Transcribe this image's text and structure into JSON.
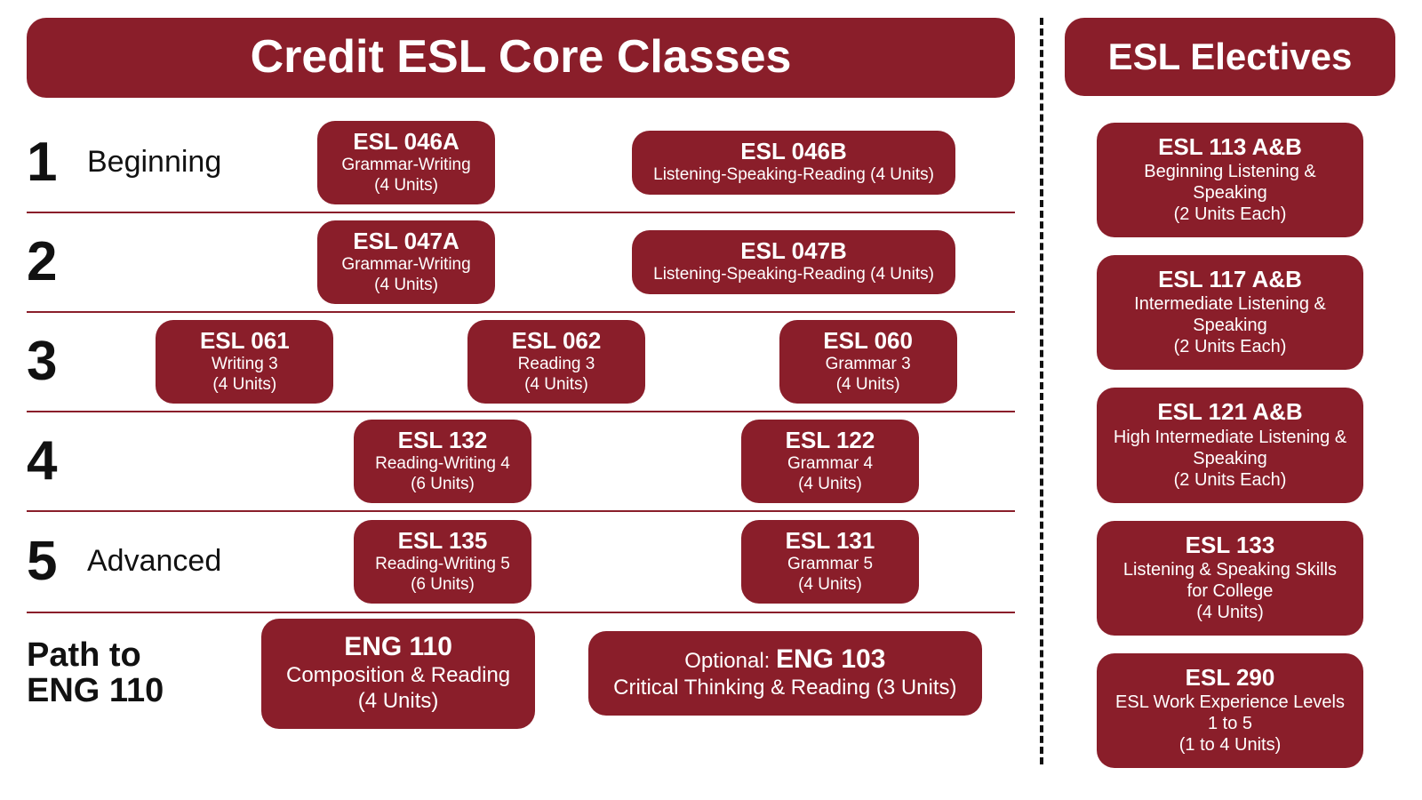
{
  "colors": {
    "maroon": "#8a1e2a",
    "divider": "#8a1e2a",
    "black": "#111111",
    "white": "#ffffff"
  },
  "core": {
    "header": "Credit ESL Core Classes",
    "rows": [
      {
        "num": "1",
        "label": "Beginning",
        "layout": "two",
        "courses": [
          {
            "code": "ESL 046A",
            "desc": "Grammar-Writing",
            "units": "(4 Units)"
          },
          {
            "code": "ESL 046B",
            "desc": "Listening-Speaking-Reading (4 Units)",
            "units": ""
          }
        ]
      },
      {
        "num": "2",
        "label": "",
        "layout": "two",
        "courses": [
          {
            "code": "ESL 047A",
            "desc": "Grammar-Writing",
            "units": "(4 Units)"
          },
          {
            "code": "ESL 047B",
            "desc": "Listening-Speaking-Reading (4 Units)",
            "units": ""
          }
        ]
      },
      {
        "num": "3",
        "label": "",
        "layout": "three",
        "courses": [
          {
            "code": "ESL 061",
            "desc": "Writing 3",
            "units": "(4 Units)"
          },
          {
            "code": "ESL 062",
            "desc": "Reading 3",
            "units": "(4 Units)"
          },
          {
            "code": "ESL 060",
            "desc": "Grammar 3",
            "units": "(4 Units)"
          }
        ]
      },
      {
        "num": "4",
        "label": "",
        "layout": "two",
        "courses": [
          {
            "code": "ESL 132",
            "desc": "Reading-Writing 4",
            "units": "(6 Units)"
          },
          {
            "code": "ESL 122",
            "desc": "Grammar 4",
            "units": "(4 Units)"
          }
        ]
      },
      {
        "num": "5",
        "label": "Advanced",
        "layout": "two",
        "courses": [
          {
            "code": "ESL 135",
            "desc": "Reading-Writing 5",
            "units": "(6 Units)"
          },
          {
            "code": "ESL 131",
            "desc": "Grammar 5",
            "units": "(4 Units)"
          }
        ]
      }
    ],
    "path": {
      "label_line1": "Path to",
      "label_line2": "ENG 110",
      "courses": [
        {
          "prefix": "",
          "code": "ENG 110",
          "desc": "Composition & Reading",
          "units": "(4 Units)"
        },
        {
          "prefix": "Optional: ",
          "code": "ENG 103",
          "desc": "Critical Thinking & Reading (3 Units)",
          "units": ""
        }
      ]
    }
  },
  "electives": {
    "header": "ESL Electives",
    "courses": [
      {
        "code": "ESL 113 A&B",
        "desc": "Beginning Listening & Speaking",
        "units": "(2 Units Each)"
      },
      {
        "code": "ESL 117 A&B",
        "desc": "Intermediate Listening & Speaking",
        "units": "(2 Units Each)"
      },
      {
        "code": "ESL 121 A&B",
        "desc": "High Intermediate Listening & Speaking",
        "units": "(2 Units Each)"
      },
      {
        "code": "ESL 133",
        "desc": "Listening & Speaking Skills for College",
        "units": "(4 Units)"
      },
      {
        "code": "ESL 290",
        "desc": "ESL Work Experience Levels 1 to 5",
        "units": "(1 to 4 Units)"
      }
    ]
  }
}
